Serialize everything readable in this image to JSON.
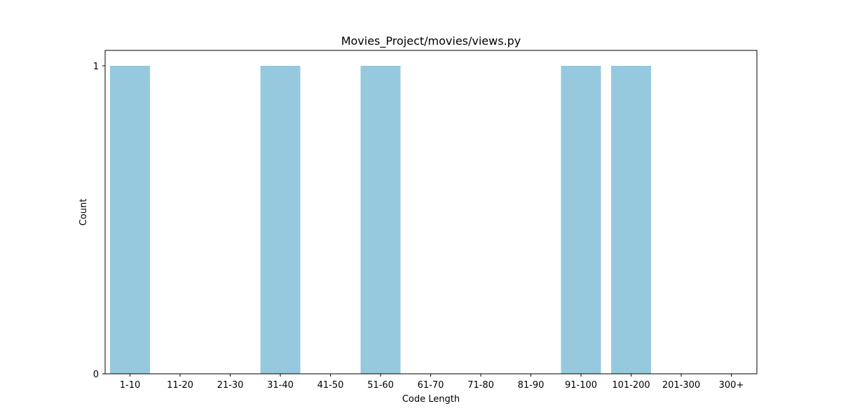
{
  "chart_data": {
    "type": "bar",
    "title": "Movies_Project/movies/views.py",
    "xlabel": "Code Length",
    "ylabel": "Count",
    "categories": [
      "1-10",
      "11-20",
      "21-30",
      "31-40",
      "41-50",
      "51-60",
      "61-70",
      "71-80",
      "81-90",
      "91-100",
      "101-200",
      "201-300",
      "300+"
    ],
    "values": [
      1,
      0,
      0,
      1,
      0,
      1,
      0,
      0,
      0,
      1,
      1,
      0,
      0
    ],
    "yticks": [
      0,
      1
    ],
    "ylim": [
      0,
      1.05
    ],
    "grid": false,
    "bar_color": "#96c9de"
  }
}
